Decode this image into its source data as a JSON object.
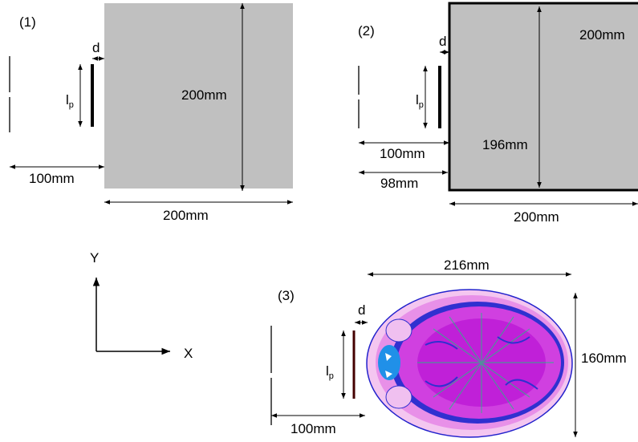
{
  "panels": [
    {
      "label": "(1)",
      "d": "d",
      "lp": {
        "main": "l",
        "sub": "p"
      },
      "dims": [
        "200mm",
        "100mm",
        "200mm"
      ]
    },
    {
      "label": "(2)",
      "d": "d",
      "lp": {
        "main": "l",
        "sub": "p"
      },
      "dims": [
        "200mm",
        "100mm",
        "196mm",
        "98mm",
        "200mm"
      ]
    },
    {
      "label": "(3)",
      "d": "d",
      "lp": {
        "main": "l",
        "sub": "p"
      },
      "dims": [
        "216mm",
        "160mm",
        "100mm"
      ]
    }
  ],
  "axes": {
    "y": "Y",
    "x": "X"
  }
}
